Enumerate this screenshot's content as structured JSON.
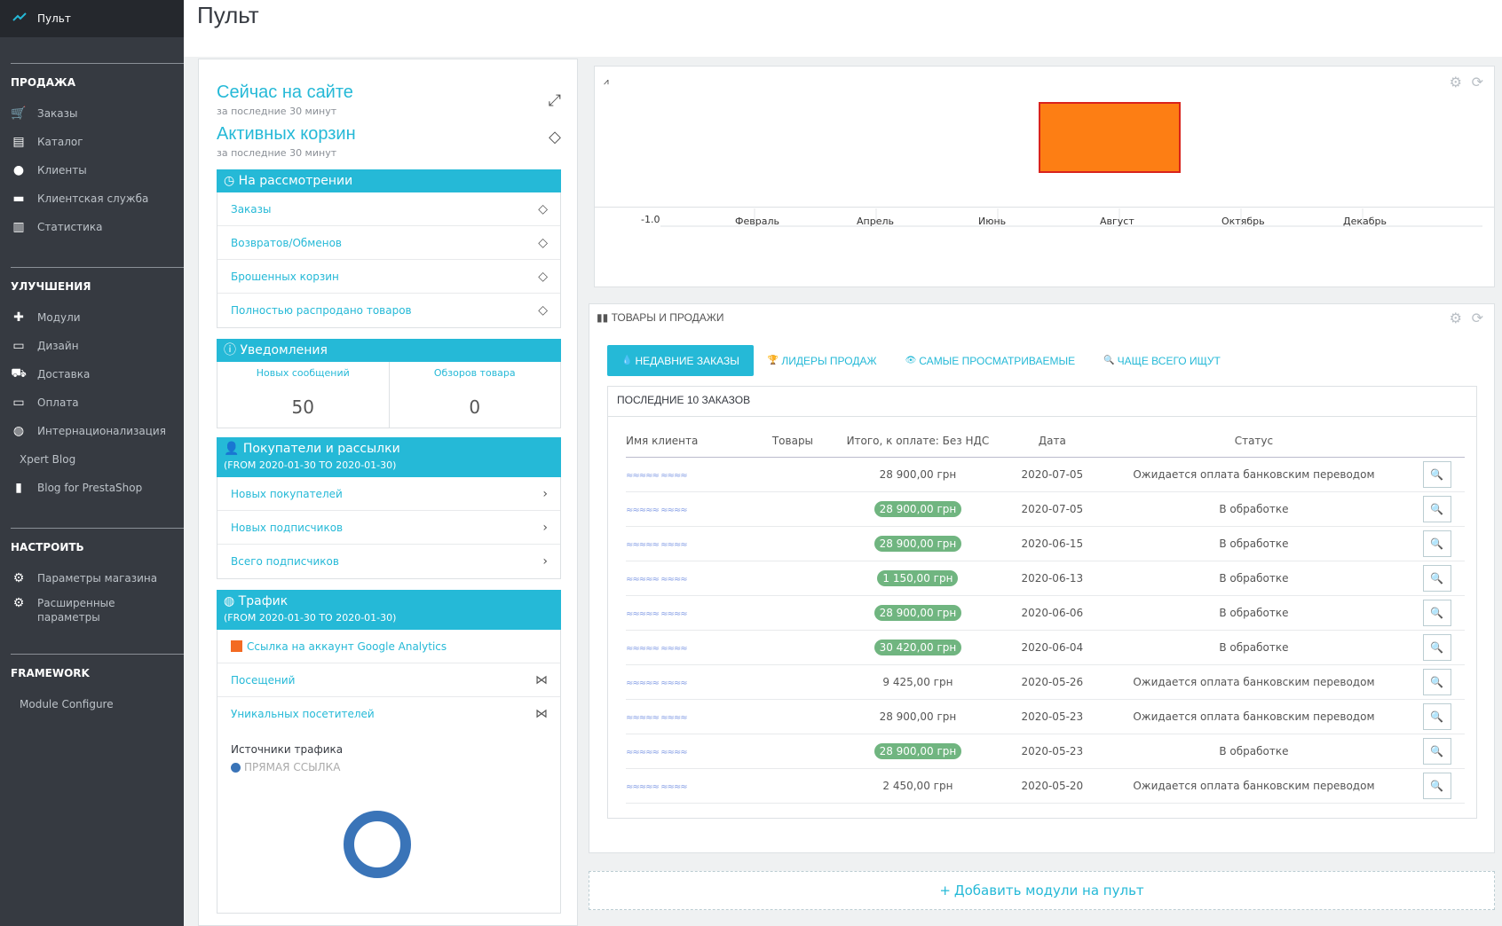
{
  "page_title": "Пульт",
  "sidebar": {
    "active_item": "Пульт",
    "sections": [
      {
        "title": "ПРОДАЖА",
        "items": [
          {
            "label": "Заказы",
            "icon": "basket-icon"
          },
          {
            "label": "Каталог",
            "icon": "store-icon"
          },
          {
            "label": "Клиенты",
            "icon": "account-circle-icon"
          },
          {
            "label": "Клиентская служба",
            "icon": "chat-icon"
          },
          {
            "label": "Статистика",
            "icon": "bar-chart-icon"
          }
        ]
      },
      {
        "title": "УЛУЧШЕНИЯ",
        "items": [
          {
            "label": "Модули",
            "icon": "puzzle-icon"
          },
          {
            "label": "Дизайн",
            "icon": "desktop-icon"
          },
          {
            "label": "Доставка",
            "icon": "truck-icon"
          },
          {
            "label": "Оплата",
            "icon": "credit-card-icon"
          },
          {
            "label": "Интернационализация",
            "icon": "globe-icon"
          },
          {
            "label": "Xpert Blog",
            "icon": ""
          },
          {
            "label": "Blog for PrestaShop",
            "icon": "book-icon"
          }
        ]
      },
      {
        "title": "НАСТРОИТЬ",
        "items": [
          {
            "label": "Параметры магазина",
            "icon": "gear-icon"
          },
          {
            "label": "Расширенные параметры",
            "icon": "settings-applications-icon"
          }
        ]
      },
      {
        "title": "FRAMEWORK",
        "items": [
          {
            "label": "Module Configure",
            "icon": ""
          }
        ]
      }
    ]
  },
  "activity": {
    "online_title": "Сейчас на сайте",
    "online_sub": "за последние 30 минут",
    "carts_title": "Активных корзин",
    "carts_sub": "за последние 30 минут",
    "pending": {
      "title": "На рассмотрении",
      "rows": [
        "Заказы",
        "Возвратов/Обменов",
        "Брошенных корзин",
        "Полностью распродано товаров"
      ]
    },
    "notifications": {
      "title": "Уведомления",
      "new_messages_label": "Новых сообщений",
      "new_messages_value": "50",
      "reviews_label": "Обзоров товара",
      "reviews_value": "0"
    },
    "customers": {
      "title": "Покупатели и рассылки",
      "subtitle": "(FROM 2020-01-30 TO 2020-01-30)",
      "rows": [
        "Новых покупателей",
        "Новых подписчиков",
        "Всего подписчиков"
      ]
    },
    "traffic": {
      "title": "Трафик",
      "subtitle": "(FROM 2020-01-30 TO 2020-01-30)",
      "ga_link": "Ссылка на аккаунт Google Analytics",
      "rows": [
        "Посещений",
        "Уникальных посетителей"
      ],
      "sources_label": "Источники трафика",
      "source_direct": "ПРЯМАЯ ССЫЛКА"
    }
  },
  "chart_data": {
    "type": "line",
    "categories": [
      "Февраль",
      "Апрель",
      "Июнь",
      "Август",
      "Октябрь",
      "Декабрь"
    ],
    "ylabel_tick": "-1.0",
    "title": "",
    "xlabel": "",
    "ylabel": ""
  },
  "products": {
    "title": "ТОВАРЫ И ПРОДАЖИ",
    "tabs": [
      "НЕДАВНИЕ ЗАКАЗЫ",
      "ЛИДЕРЫ ПРОДАЖ",
      "САМЫЕ ПРОСМАТРИВАЕМЫЕ",
      "ЧАЩЕ ВСЕГО ИЩУТ"
    ],
    "recent_title": "ПОСЛЕДНИЕ 10 ЗАКАЗОВ",
    "columns": [
      "Имя клиента",
      "Товары",
      "Итого, к оплате: Без НДС",
      "Дата",
      "Статус"
    ],
    "orders": [
      {
        "total": "28 900,00 грн",
        "paid": false,
        "date": "2020-07-05",
        "status": "Ожидается оплата банковским переводом"
      },
      {
        "total": "28 900,00 грн",
        "paid": true,
        "date": "2020-07-05",
        "status": "В обработке"
      },
      {
        "total": "28 900,00 грн",
        "paid": true,
        "date": "2020-06-15",
        "status": "В обработке"
      },
      {
        "total": "1 150,00 грн",
        "paid": true,
        "date": "2020-06-13",
        "status": "В обработке"
      },
      {
        "total": "28 900,00 грн",
        "paid": true,
        "date": "2020-06-06",
        "status": "В обработке"
      },
      {
        "total": "30 420,00 грн",
        "paid": true,
        "date": "2020-06-04",
        "status": "В обработке"
      },
      {
        "total": "9 425,00 грн",
        "paid": false,
        "date": "2020-05-26",
        "status": "Ожидается оплата банковским переводом"
      },
      {
        "total": "28 900,00 грн",
        "paid": false,
        "date": "2020-05-23",
        "status": "Ожидается оплата банковским переводом"
      },
      {
        "total": "28 900,00 грн",
        "paid": true,
        "date": "2020-05-23",
        "status": "В обработке"
      },
      {
        "total": "2 450,00 грн",
        "paid": false,
        "date": "2020-05-20",
        "status": "Ожидается оплата банковским переводом"
      }
    ]
  },
  "add_modules": "Добавить модули на пульт",
  "colors": {
    "accent": "#25b9d7",
    "sidebar": "#363a41",
    "active_kpi": "#fd7e14",
    "paid": "#70b580"
  }
}
